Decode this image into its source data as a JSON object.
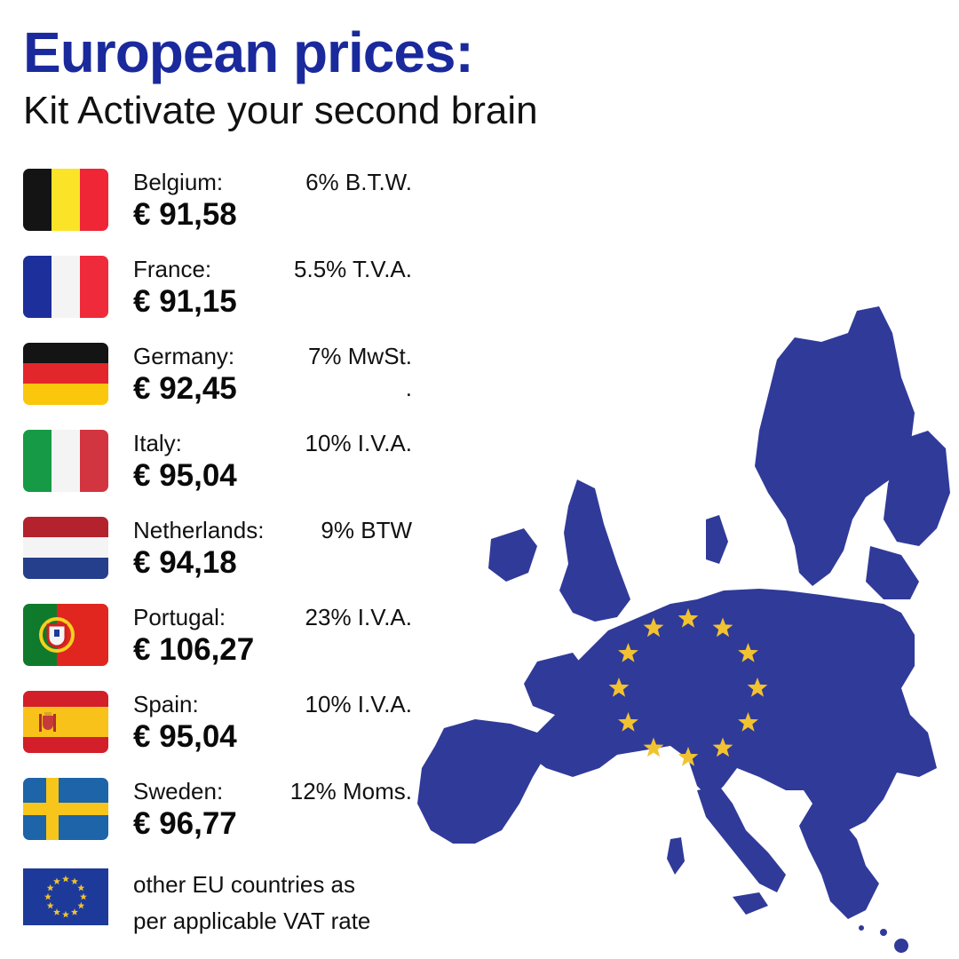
{
  "header": {
    "title": "European prices:",
    "subtitle": "Kit Activate your second brain"
  },
  "countries": [
    {
      "name": "Belgium:",
      "vat": "6% B.T.W.",
      "price": "€ 91,58",
      "flag": "belgium-flag-icon"
    },
    {
      "name": "France:",
      "vat": "5.5% T.V.A.",
      "price": "€ 91,15",
      "flag": "france-flag-icon"
    },
    {
      "name": "Germany:",
      "vat": "7% MwSt.",
      "price": "€ 92,45",
      "extra": ".",
      "flag": "germany-flag-icon"
    },
    {
      "name": "Italy:",
      "vat": "10% I.V.A.",
      "price": "€ 95,04",
      "flag": "italy-flag-icon"
    },
    {
      "name": "Netherlands:",
      "vat": "9% BTW",
      "price": "€ 94,18",
      "flag": "netherlands-flag-icon"
    },
    {
      "name": "Portugal:",
      "vat": "23% I.V.A.",
      "price": "€ 106,27",
      "flag": "portugal-flag-icon"
    },
    {
      "name": "Spain:",
      "vat": "10% I.V.A.",
      "price": "€ 95,04",
      "flag": "spain-flag-icon"
    },
    {
      "name": "Sweden:",
      "vat": "12% Moms.",
      "price": "€ 96,77",
      "flag": "sweden-flag-icon"
    }
  ],
  "other": {
    "line1": "other EU countries as",
    "line2": "per applicable VAT rate",
    "flag": "eu-flag-icon"
  },
  "colors": {
    "title": "#1a2a9c",
    "map": "#303a99",
    "stars": "#f2c230"
  },
  "map": {
    "icon": "eu-map-icon",
    "stars_count": 12
  }
}
